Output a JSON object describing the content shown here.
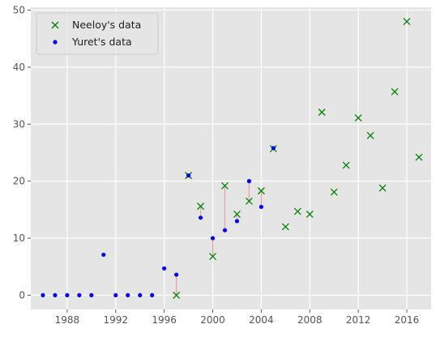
{
  "chart_data": {
    "type": "scatter",
    "title": "",
    "xlabel": "",
    "ylabel": "",
    "xlim": [
      1985,
      2018
    ],
    "ylim": [
      -2.5,
      50.5
    ],
    "xticks": [
      1988,
      1992,
      1996,
      2000,
      2004,
      2008,
      2012,
      2016
    ],
    "yticks": [
      0,
      10,
      20,
      30,
      40,
      50
    ],
    "grid": true,
    "legend_position": "top-left",
    "series": [
      {
        "name": "Neeloy's data",
        "marker": "x",
        "color": "#008000",
        "points": [
          [
            1997,
            0
          ],
          [
            1998,
            21
          ],
          [
            1999,
            15.6
          ],
          [
            2000,
            6.8
          ],
          [
            2001,
            19.2
          ],
          [
            2002,
            14.2
          ],
          [
            2003,
            16.5
          ],
          [
            2004,
            18.3
          ],
          [
            2005,
            25.7
          ],
          [
            2006,
            12
          ],
          [
            2007,
            14.7
          ],
          [
            2008,
            14.2
          ],
          [
            2009,
            32.1
          ],
          [
            2010,
            18.1
          ],
          [
            2011,
            22.8
          ],
          [
            2012,
            31.1
          ],
          [
            2013,
            28
          ],
          [
            2014,
            18.8
          ],
          [
            2015,
            35.7
          ],
          [
            2016,
            48
          ],
          [
            2017,
            24.2
          ]
        ]
      },
      {
        "name": "Yuret's data",
        "marker": "dot",
        "color": "#0000ff",
        "points": [
          [
            1986,
            0
          ],
          [
            1987,
            0
          ],
          [
            1988,
            0
          ],
          [
            1989,
            0
          ],
          [
            1990,
            0
          ],
          [
            1991,
            7.1
          ],
          [
            1992,
            0
          ],
          [
            1993,
            0
          ],
          [
            1994,
            0
          ],
          [
            1995,
            0
          ],
          [
            1996,
            4.7
          ],
          [
            1997,
            3.6
          ],
          [
            1998,
            21
          ],
          [
            1999,
            13.6
          ],
          [
            2000,
            10
          ],
          [
            2001,
            11.4
          ],
          [
            2002,
            13
          ],
          [
            2003,
            20
          ],
          [
            2004,
            15.5
          ],
          [
            2005,
            25.8
          ]
        ]
      }
    ],
    "connector_color": "#e8a0a0"
  }
}
